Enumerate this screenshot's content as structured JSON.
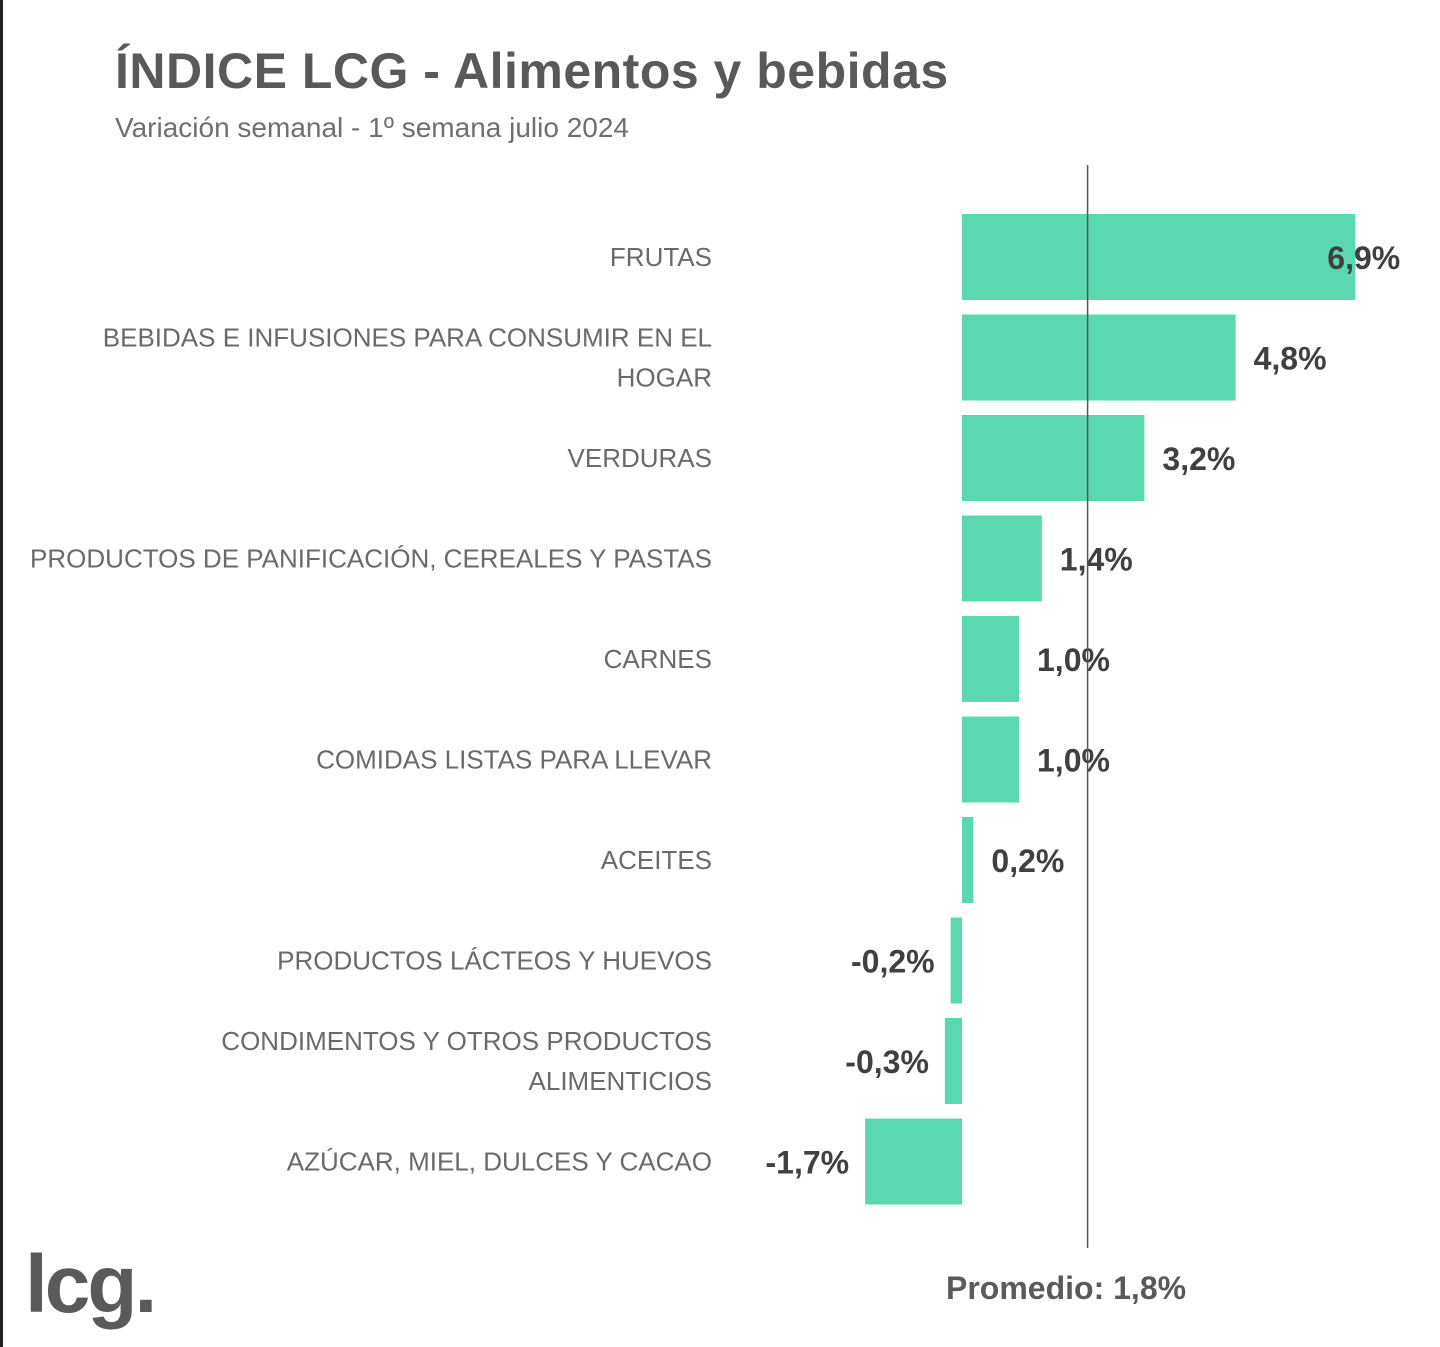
{
  "header": {
    "title": "ÍNDICE LCG - Alimentos y bebidas",
    "subtitle": "Variación semanal - 1º semana julio 2024"
  },
  "logo": {
    "text": "lcg."
  },
  "average": {
    "label": "Promedio: 1,8%",
    "value": 1.8
  },
  "colors": {
    "bar": "#5ad8b0",
    "average_line": "#555555",
    "text": "#595959"
  },
  "chart_data": {
    "type": "bar",
    "orientation": "horizontal",
    "title": "ÍNDICE LCG - Alimentos y bebidas",
    "subtitle": "Variación semanal - 1º semana julio 2024",
    "categories": [
      [
        "FRUTAS"
      ],
      [
        "BEBIDAS E INFUSIONES PARA CONSUMIR EN EL",
        "HOGAR"
      ],
      [
        "VERDURAS"
      ],
      [
        "PRODUCTOS DE PANIFICACIÓN, CEREALES Y PASTAS"
      ],
      [
        "CARNES"
      ],
      [
        "COMIDAS LISTAS PARA LLEVAR"
      ],
      [
        "ACEITES"
      ],
      [
        "PRODUCTOS LÁCTEOS Y HUEVOS"
      ],
      [
        "CONDIMENTOS Y OTROS PRODUCTOS",
        "ALIMENTICIOS"
      ],
      [
        "AZÚCAR, MIEL, DULCES Y CACAO"
      ]
    ],
    "values": [
      6.9,
      4.8,
      3.2,
      1.4,
      1.0,
      1.0,
      0.2,
      -0.2,
      -0.3,
      -1.7
    ],
    "value_labels": [
      "6,9%",
      "4,8%",
      "3,2%",
      "1,4%",
      "1,0%",
      "1,0%",
      "0,2%",
      "-0,2%",
      "-0,3%",
      "-1,7%"
    ],
    "reference_line": {
      "value": 1.8,
      "label": "Promedio: 1,8%"
    },
    "grid": false,
    "legend": "none"
  }
}
